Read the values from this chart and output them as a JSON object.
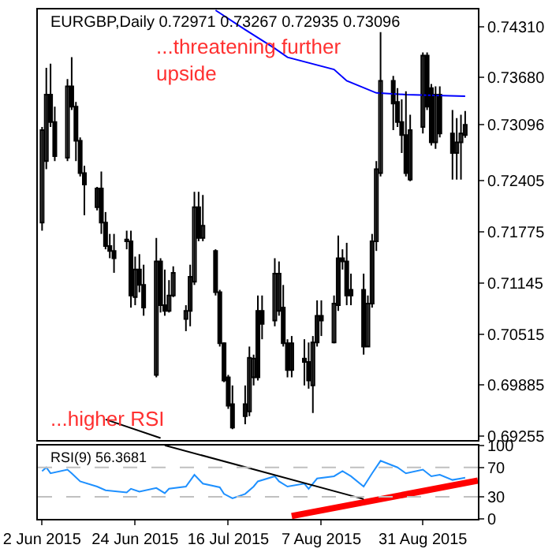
{
  "chart_data": [
    {
      "type": "candlestick",
      "title": "EURGBP,Daily 0.72971 0.73267 0.72935 0.73096",
      "color": "#000000",
      "x": [
        "2015-06-02",
        "2015-06-03",
        "2015-06-04",
        "2015-06-05",
        "2015-06-08",
        "2015-06-09",
        "2015-06-10",
        "2015-06-11",
        "2015-06-12",
        "2015-06-15",
        "2015-06-16",
        "2015-06-17",
        "2015-06-18",
        "2015-06-19",
        "2015-06-22",
        "2015-06-23",
        "2015-06-24",
        "2015-06-25",
        "2015-06-26",
        "2015-06-29",
        "2015-06-30",
        "2015-07-01",
        "2015-07-02",
        "2015-07-03",
        "2015-07-06",
        "2015-07-07",
        "2015-07-08",
        "2015-07-09",
        "2015-07-10",
        "2015-07-13",
        "2015-07-14",
        "2015-07-15",
        "2015-07-16",
        "2015-07-17",
        "2015-07-20",
        "2015-07-21",
        "2015-07-22",
        "2015-07-23",
        "2015-07-24",
        "2015-07-27",
        "2015-07-28",
        "2015-07-29",
        "2015-07-30",
        "2015-07-31",
        "2015-08-03",
        "2015-08-04",
        "2015-08-05",
        "2015-08-06",
        "2015-08-07",
        "2015-08-10",
        "2015-08-11",
        "2015-08-12",
        "2015-08-13",
        "2015-08-14",
        "2015-08-17",
        "2015-08-18",
        "2015-08-19",
        "2015-08-20",
        "2015-08-21",
        "2015-08-24",
        "2015-08-25",
        "2015-08-26",
        "2015-08-27",
        "2015-08-28",
        "2015-08-31",
        "2015-09-01",
        "2015-09-02",
        "2015-09-03",
        "2015-09-04",
        "2015-09-07",
        "2015-09-08",
        "2015-09-09",
        "2015-09-10"
      ],
      "ohlc": [
        [
          0.7189,
          0.7307,
          0.7179,
          0.7303
        ],
        [
          0.7265,
          0.738,
          0.7255,
          0.7347
        ],
        [
          0.7347,
          0.7385,
          0.7307,
          0.7313
        ],
        [
          0.7313,
          0.7332,
          0.7265,
          0.7271
        ],
        [
          0.7269,
          0.7366,
          0.7265,
          0.7357
        ],
        [
          0.7357,
          0.7393,
          0.7328,
          0.7332
        ],
        [
          0.7332,
          0.7338,
          0.7265,
          0.729
        ],
        [
          0.729,
          0.7294,
          0.7246,
          0.725
        ],
        [
          0.725,
          0.7259,
          0.7198,
          0.7236
        ],
        [
          0.7208,
          0.7233,
          0.7204,
          0.7231
        ],
        [
          0.7231,
          0.7252,
          0.7175,
          0.7189
        ],
        [
          0.7189,
          0.7202,
          0.7156,
          0.716
        ],
        [
          0.716,
          0.7175,
          0.7145,
          0.7154
        ],
        [
          0.7154,
          0.7175,
          0.7127,
          0.7145
        ],
        [
          0.7166,
          0.7179,
          0.7156,
          0.7168
        ],
        [
          0.7166,
          0.7179,
          0.7084,
          0.7099
        ],
        [
          0.7097,
          0.7147,
          0.7087,
          0.7131
        ],
        [
          0.7131,
          0.715,
          0.7103,
          0.7112
        ],
        [
          0.7112,
          0.7137,
          0.7074,
          0.7084
        ],
        [
          0.7001,
          0.717,
          0.6998,
          0.7141
        ],
        [
          0.7141,
          0.7145,
          0.7078,
          0.7087
        ],
        [
          0.7087,
          0.7131,
          0.7074,
          0.708
        ],
        [
          0.708,
          0.7118,
          0.7078,
          0.7099
        ],
        [
          0.7099,
          0.7135,
          0.7097,
          0.7127
        ],
        [
          0.707,
          0.7087,
          0.7055,
          0.708
        ],
        [
          0.708,
          0.7137,
          0.7061,
          0.7122
        ],
        [
          0.7116,
          0.7227,
          0.7112,
          0.7208
        ],
        [
          0.7208,
          0.7227,
          0.7166,
          0.717
        ],
        [
          0.717,
          0.7223,
          0.7166,
          0.7185
        ],
        [
          0.7154,
          0.7156,
          0.7099,
          0.7103
        ],
        [
          0.7103,
          0.7106,
          0.7036,
          0.704
        ],
        [
          0.704,
          0.7041,
          0.6992,
          0.6994
        ],
        [
          0.6998,
          0.7001,
          0.6959,
          0.6963
        ],
        [
          0.6965,
          0.6988,
          0.6934,
          0.6936
        ],
        [
          0.695,
          0.6988,
          0.694,
          0.6965
        ],
        [
          0.6956,
          0.7036,
          0.695,
          0.7022
        ],
        [
          0.6998,
          0.7026,
          0.6988,
          0.7021
        ],
        [
          0.6998,
          0.7099,
          0.6994,
          0.708
        ],
        [
          0.708,
          0.7099,
          0.7045,
          0.7064
        ],
        [
          0.7068,
          0.7145,
          0.7061,
          0.7126
        ],
        [
          0.708,
          0.7141,
          0.7074,
          0.7126
        ],
        [
          0.7084,
          0.7112,
          0.7036,
          0.704
        ],
        [
          0.704,
          0.7045,
          0.6998,
          0.7007
        ],
        [
          0.7007,
          0.7049,
          0.6998,
          0.704
        ],
        [
          0.7017,
          0.7045,
          0.6988,
          0.7021
        ],
        [
          0.7017,
          0.7041,
          0.6984,
          0.6994
        ],
        [
          0.6988,
          0.7049,
          0.6954,
          0.7041
        ],
        [
          0.7041,
          0.7093,
          0.7036,
          0.7074
        ],
        [
          0.7074,
          0.7093,
          0.7049,
          0.7068
        ],
        [
          0.7041,
          0.7099,
          0.704,
          0.7089
        ],
        [
          0.7087,
          0.7173,
          0.708,
          0.7145
        ],
        [
          0.7145,
          0.7156,
          0.7131,
          0.7141
        ],
        [
          0.7141,
          0.7164,
          0.7087,
          0.7099
        ],
        [
          0.7099,
          0.7126,
          0.7087,
          0.7106
        ],
        [
          0.7106,
          0.7126,
          0.7026,
          0.7036
        ],
        [
          0.7036,
          0.7099,
          0.7036,
          0.7089
        ],
        [
          0.7089,
          0.7175,
          0.7084,
          0.7166
        ],
        [
          0.7166,
          0.7265,
          0.7154,
          0.7255
        ],
        [
          0.725,
          0.7424,
          0.7246,
          0.7364
        ],
        [
          0.7364,
          0.737,
          0.7303,
          0.7336
        ],
        [
          0.7338,
          0.7355,
          0.7307,
          0.7313
        ],
        [
          0.7313,
          0.7341,
          0.7275,
          0.7297
        ],
        [
          0.7297,
          0.7351,
          0.7246,
          0.725
        ],
        [
          0.7242,
          0.7322,
          0.724,
          0.7303
        ],
        [
          0.7307,
          0.7399,
          0.7299,
          0.7395
        ],
        [
          0.7395,
          0.7399,
          0.7328,
          0.7332
        ],
        [
          0.7355,
          0.736,
          0.7284,
          0.7288
        ],
        [
          0.7288,
          0.7357,
          0.728,
          0.7347
        ],
        [
          0.7347,
          0.7357,
          0.7294,
          0.7299
        ],
        [
          0.7299,
          0.7328,
          0.7242,
          0.7275
        ],
        [
          0.7275,
          0.7318,
          0.7242,
          0.7288
        ],
        [
          0.7288,
          0.7322,
          0.7242,
          0.7299
        ],
        [
          0.72971,
          0.73267,
          0.72935,
          0.73096
        ]
      ],
      "series": [
        {
          "type": "line",
          "color": "#0000ff",
          "x": [
            "2015-07-13",
            "2015-07-20",
            "2015-07-27",
            "2015-07-30",
            "2015-08-10",
            "2015-08-13",
            "2015-08-20",
            "2015-08-27",
            "2015-09-10"
          ],
          "values": [
            0.7451,
            0.7427,
            0.7404,
            0.7393,
            0.7378,
            0.7364,
            0.7349,
            0.7347,
            0.7345
          ]
        },
        {
          "type": "line",
          "color": "#000000",
          "x": [
            "2015-06-17",
            "2015-06-30"
          ],
          "values": [
            0.6946,
            0.6923
          ]
        }
      ],
      "xlim": [
        "2015-06-01",
        "2015-09-13"
      ],
      "ylim": [
        0.6921,
        0.7452
      ],
      "yticks": [
        {
          "value": 0.7431,
          "label": "0.74310"
        },
        {
          "value": 0.7368,
          "label": "0.73680"
        },
        {
          "value": 0.73096,
          "label": "0.73096"
        },
        {
          "value": 0.72405,
          "label": "0.72405"
        },
        {
          "value": 0.71775,
          "label": "0.71775"
        },
        {
          "value": 0.71145,
          "label": "0.71145"
        },
        {
          "value": 0.70515,
          "label": "0.70515"
        },
        {
          "value": 0.69885,
          "label": "0.69885"
        },
        {
          "value": 0.69255,
          "label": "0.69255"
        }
      ],
      "tick_labels": "y",
      "annotations": [
        "...threatening further\nupside",
        "...higher RSI"
      ]
    },
    {
      "type": "line",
      "title": "RSI(9) 56.3681",
      "series": [
        {
          "color": "#1e90ff",
          "x": [
            "2015-06-02",
            "2015-06-03",
            "2015-06-04",
            "2015-06-08",
            "2015-06-09",
            "2015-06-11",
            "2015-06-15",
            "2015-06-17",
            "2015-06-22",
            "2015-06-23",
            "2015-06-25",
            "2015-06-29",
            "2015-07-01",
            "2015-07-02",
            "2015-07-06",
            "2015-07-08",
            "2015-07-10",
            "2015-07-14",
            "2015-07-15",
            "2015-07-17",
            "2015-07-20",
            "2015-07-22",
            "2015-07-23",
            "2015-07-27",
            "2015-07-28",
            "2015-07-30",
            "2015-08-03",
            "2015-08-04",
            "2015-08-06",
            "2015-08-10",
            "2015-08-12",
            "2015-08-14",
            "2015-08-17",
            "2015-08-19",
            "2015-08-21",
            "2015-08-25",
            "2015-08-27",
            "2015-08-31",
            "2015-09-02",
            "2015-09-04",
            "2015-09-07",
            "2015-09-09",
            "2015-09-10"
          ],
          "values": [
            65,
            70,
            62,
            67,
            62,
            51,
            44,
            39,
            36,
            41,
            37,
            42,
            35,
            41,
            44,
            60,
            48,
            43,
            34,
            28,
            34,
            44,
            51,
            58,
            51,
            44,
            48,
            41,
            55,
            58,
            65,
            58,
            44,
            62,
            79,
            70,
            62,
            67,
            58,
            60,
            53,
            55,
            56
          ]
        },
        {
          "color": "#ff0000",
          "x": [
            "2015-07-31",
            "2015-09-13"
          ],
          "values": [
            4,
            52
          ]
        },
        {
          "color": "#000000",
          "x": [
            "2015-07-01",
            "2015-08-17"
          ],
          "values": [
            100,
            27
          ]
        }
      ],
      "xlim": [
        "2015-06-01",
        "2015-09-13"
      ],
      "ylim": [
        0,
        100
      ],
      "yticks": [
        0,
        30,
        70,
        100
      ],
      "xticks": [
        {
          "value": "2015-06-02",
          "label": "2 Jun 2015"
        },
        {
          "value": "2015-06-24",
          "label": "24 Jun 2015"
        },
        {
          "value": "2015-07-16",
          "label": "16 Jul 2015"
        },
        {
          "value": "2015-08-07",
          "label": "7 Aug 2015"
        },
        {
          "value": "2015-08-31",
          "label": "31 Aug 2015"
        }
      ],
      "ref_lines": [
        {
          "axis": "y",
          "value": 30,
          "color": "#c0c0c0",
          "line_style": "dashed"
        },
        {
          "axis": "y",
          "value": 70,
          "color": "#c0c0c0",
          "line_style": "dashed"
        }
      ]
    }
  ]
}
